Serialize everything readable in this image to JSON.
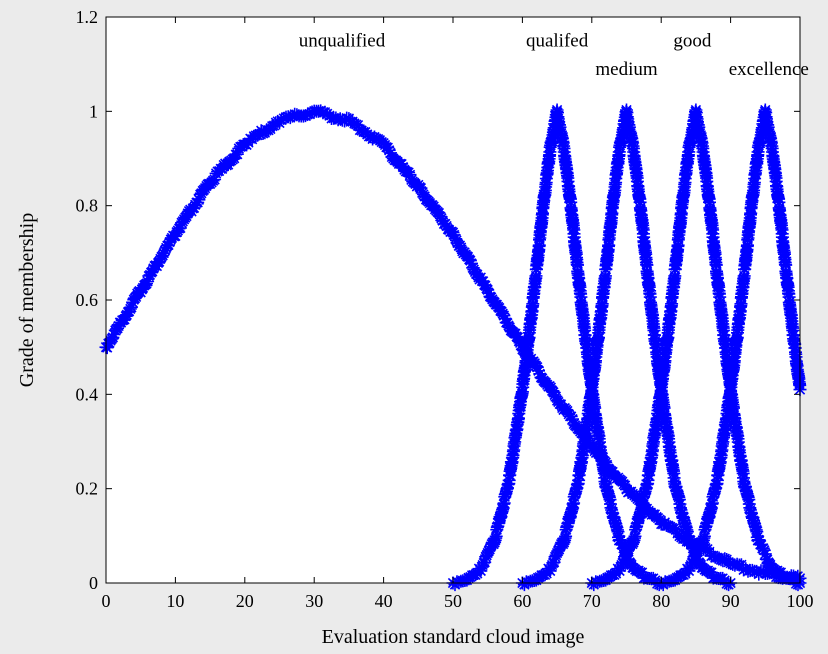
{
  "chart_data": {
    "type": "scatter",
    "xlabel": "Evaluation standard cloud image",
    "ylabel": "Grade of membership",
    "xlim": [
      0,
      100
    ],
    "ylim": [
      0,
      1.2
    ],
    "x_ticks": [
      0,
      10,
      20,
      30,
      40,
      50,
      60,
      70,
      80,
      90,
      100
    ],
    "y_ticks": [
      0,
      0.2,
      0.4,
      0.6,
      0.8,
      1,
      1.2
    ],
    "y_tick_labels": [
      "0",
      "0.2",
      "0.4",
      "0.6",
      "0.8",
      "1",
      "1.2"
    ],
    "marker": "asterisk",
    "color": "#0000ff",
    "background": "#ffffff",
    "grid": false,
    "annotations": [
      {
        "text": "unqualified",
        "x": 34,
        "y": 1.15
      },
      {
        "text": "qualifed",
        "x": 65,
        "y": 1.15
      },
      {
        "text": "good",
        "x": 84.5,
        "y": 1.15
      },
      {
        "text": "medium",
        "x": 75,
        "y": 1.09
      },
      {
        "text": "excellence",
        "x": 95.5,
        "y": 1.09
      }
    ],
    "series": [
      {
        "points": [
          [
            0,
            0.5
          ],
          [
            5,
            0.62
          ],
          [
            10,
            0.74
          ],
          [
            15,
            0.85
          ],
          [
            20,
            0.93
          ],
          [
            25,
            0.98
          ],
          [
            30,
            1.0
          ],
          [
            35,
            0.98
          ],
          [
            40,
            0.93
          ],
          [
            45,
            0.84
          ],
          [
            50,
            0.74
          ],
          [
            55,
            0.62
          ],
          [
            60,
            0.5
          ],
          [
            65,
            0.39
          ],
          [
            70,
            0.29
          ],
          [
            75,
            0.2
          ],
          [
            80,
            0.13
          ],
          [
            85,
            0.08
          ],
          [
            90,
            0.04
          ],
          [
            95,
            0.02
          ],
          [
            100,
            0.01
          ]
        ]
      },
      {
        "points": [
          [
            50,
            0.0
          ],
          [
            52,
            0.01
          ],
          [
            54,
            0.03
          ],
          [
            56,
            0.09
          ],
          [
            58,
            0.21
          ],
          [
            60,
            0.41
          ],
          [
            61,
            0.53
          ],
          [
            62,
            0.66
          ],
          [
            63,
            0.8
          ],
          [
            64,
            0.92
          ],
          [
            65,
            1.0
          ],
          [
            66,
            0.92
          ],
          [
            67,
            0.8
          ],
          [
            68,
            0.66
          ],
          [
            69,
            0.53
          ],
          [
            70,
            0.41
          ],
          [
            72,
            0.21
          ],
          [
            74,
            0.09
          ],
          [
            76,
            0.03
          ],
          [
            78,
            0.01
          ],
          [
            80,
            0.0
          ]
        ]
      },
      {
        "points": [
          [
            60,
            0.0
          ],
          [
            62,
            0.01
          ],
          [
            64,
            0.03
          ],
          [
            66,
            0.09
          ],
          [
            68,
            0.21
          ],
          [
            70,
            0.41
          ],
          [
            71,
            0.53
          ],
          [
            72,
            0.66
          ],
          [
            73,
            0.8
          ],
          [
            74,
            0.92
          ],
          [
            75,
            1.0
          ],
          [
            76,
            0.92
          ],
          [
            77,
            0.8
          ],
          [
            78,
            0.66
          ],
          [
            79,
            0.53
          ],
          [
            80,
            0.41
          ],
          [
            82,
            0.21
          ],
          [
            84,
            0.09
          ],
          [
            86,
            0.03
          ],
          [
            88,
            0.01
          ],
          [
            90,
            0.0
          ]
        ]
      },
      {
        "points": [
          [
            70,
            0.0
          ],
          [
            72,
            0.01
          ],
          [
            74,
            0.03
          ],
          [
            76,
            0.09
          ],
          [
            78,
            0.21
          ],
          [
            80,
            0.41
          ],
          [
            81,
            0.53
          ],
          [
            82,
            0.66
          ],
          [
            83,
            0.8
          ],
          [
            84,
            0.92
          ],
          [
            85,
            1.0
          ],
          [
            86,
            0.92
          ],
          [
            87,
            0.8
          ],
          [
            88,
            0.66
          ],
          [
            89,
            0.53
          ],
          [
            90,
            0.41
          ],
          [
            92,
            0.21
          ],
          [
            94,
            0.09
          ],
          [
            96,
            0.03
          ],
          [
            98,
            0.01
          ],
          [
            100,
            0.0
          ]
        ]
      },
      {
        "points": [
          [
            80,
            0.0
          ],
          [
            82,
            0.01
          ],
          [
            84,
            0.03
          ],
          [
            86,
            0.09
          ],
          [
            88,
            0.21
          ],
          [
            90,
            0.41
          ],
          [
            91,
            0.53
          ],
          [
            92,
            0.66
          ],
          [
            93,
            0.8
          ],
          [
            94,
            0.92
          ],
          [
            95,
            1.0
          ],
          [
            96,
            0.92
          ],
          [
            97,
            0.8
          ],
          [
            98,
            0.66
          ],
          [
            99,
            0.53
          ],
          [
            100,
            0.41
          ]
        ]
      }
    ]
  }
}
